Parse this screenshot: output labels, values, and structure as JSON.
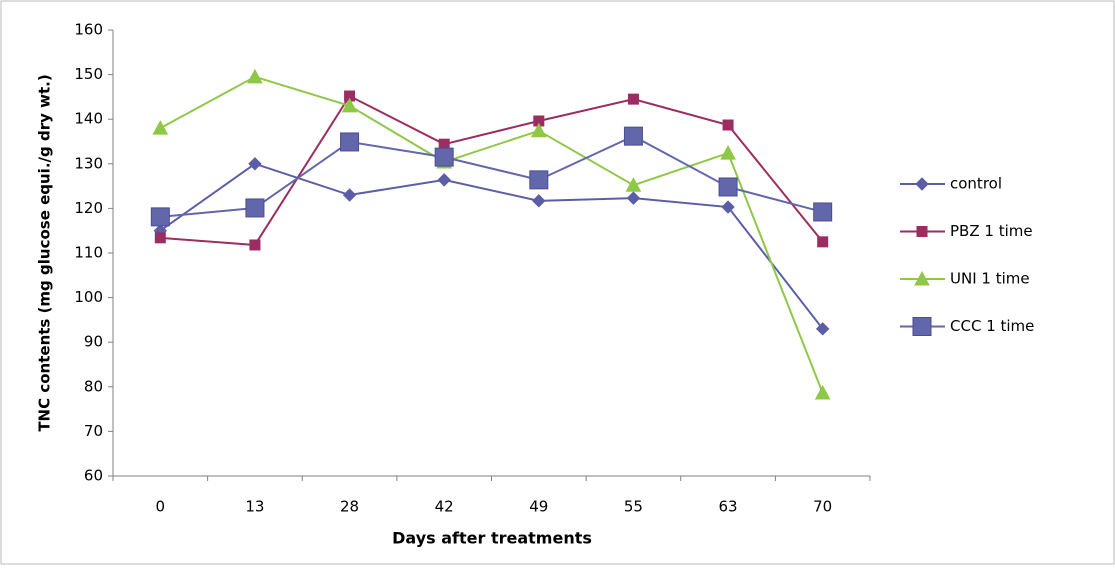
{
  "chart_data": {
    "type": "line",
    "x_label": "Days after treatments",
    "y_label": "TNC contents (mg glucose equi./g dry wt.)",
    "categories": [
      "0",
      "13",
      "28",
      "42",
      "49",
      "55",
      "63",
      "70"
    ],
    "series": [
      {
        "name": "control",
        "color": "#5b5ea6",
        "marker": "diamond",
        "values": [
          115,
          130,
          123,
          126.4,
          121.7,
          122.3,
          120.3,
          93
        ]
      },
      {
        "name": "PBZ 1 time",
        "color": "#9b2d62",
        "marker": "square",
        "values": [
          113.4,
          111.8,
          145.2,
          134.4,
          139.6,
          144.5,
          138.7,
          112.5
        ]
      },
      {
        "name": "UNI 1 time",
        "color": "#8fc846",
        "marker": "triangle",
        "values": [
          138,
          149.5,
          143,
          130.4,
          137.4,
          125.2,
          132.4,
          78.6
        ]
      },
      {
        "name": "CCC 1 time",
        "color": "#6266aa",
        "marker": "big-square",
        "values": [
          118.1,
          120.1,
          134.9,
          131.5,
          126.4,
          136.2,
          124.8,
          119.2
        ]
      }
    ],
    "ylim": [
      60,
      160
    ],
    "yticks": [
      60,
      70,
      80,
      90,
      100,
      110,
      120,
      130,
      140,
      150,
      160
    ],
    "legend": "right"
  }
}
